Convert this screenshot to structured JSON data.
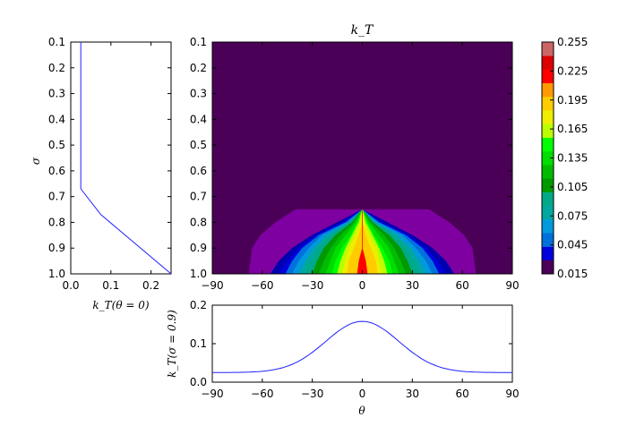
{
  "chart_data": [
    {
      "type": "line",
      "name": "profile-theta0",
      "xlabel": "k_T(θ = 0)",
      "ylabel": "σ",
      "xlim": [
        0.0,
        0.25
      ],
      "ylim": [
        0.1,
        1.0
      ],
      "y_inverted": true,
      "xticks": [
        "0.0",
        "0.1",
        "0.2"
      ],
      "yticks": [
        "0.1",
        "0.2",
        "0.3",
        "0.4",
        "0.5",
        "0.6",
        "0.7",
        "0.8",
        "0.9",
        "1.0"
      ],
      "series": [
        {
          "color": "#2020ff",
          "x": [
            0.025,
            0.025,
            0.075,
            0.25
          ],
          "y": [
            0.1,
            0.67,
            0.77,
            1.0
          ]
        }
      ]
    },
    {
      "type": "heatmap",
      "name": "kT-contour",
      "title": "k_T",
      "xlim": [
        -90,
        90
      ],
      "ylim": [
        0.1,
        1.0
      ],
      "y_inverted": true,
      "xticks": [
        "−90",
        "−60",
        "−30",
        "0",
        "30",
        "60",
        "90"
      ],
      "yticks": [
        "0.1",
        "0.2",
        "0.3",
        "0.4",
        "0.5",
        "0.6",
        "0.7",
        "0.8",
        "0.9",
        "1.0"
      ],
      "colorbar_ticks": [
        "0.255",
        "0.225",
        "0.195",
        "0.165",
        "0.135",
        "0.105",
        "0.075",
        "0.045",
        "0.015"
      ],
      "levels": [
        0.0,
        0.015,
        0.03,
        0.045,
        0.06,
        0.075,
        0.09,
        0.105,
        0.12,
        0.135,
        0.15,
        0.165,
        0.18,
        0.195,
        0.21,
        0.225,
        0.24,
        0.255,
        0.27
      ],
      "level_colors": [
        "#4b0057",
        "#7f00a0",
        "#0000b0",
        "#0000dd",
        "#0070dd",
        "#0099dd",
        "#00a8a0",
        "#00aa88",
        "#009900",
        "#00bb00",
        "#00dd00",
        "#00ff00",
        "#bbff00",
        "#eeee00",
        "#ffcc00",
        "#ff9900",
        "#ff0000",
        "#dd0000",
        "#cc6666"
      ],
      "contours": [
        {
          "level": 0.015,
          "theta_half_width": [
            68,
            67,
            66,
            61,
            52,
            40
          ]
        },
        {
          "level": 0.03,
          "theta_half_width": [
            55,
            50,
            42,
            30,
            15,
            0
          ]
        },
        {
          "level": 0.045,
          "theta_half_width": [
            50,
            45,
            38,
            28,
            12,
            0
          ]
        },
        {
          "level": 0.06,
          "theta_half_width": [
            46,
            42,
            36,
            26,
            10,
            0
          ]
        },
        {
          "level": 0.075,
          "theta_half_width": [
            42,
            38,
            32,
            24,
            9,
            0
          ]
        },
        {
          "level": 0.09,
          "theta_half_width": [
            38,
            34,
            29,
            21,
            8,
            0
          ]
        },
        {
          "level": 0.105,
          "theta_half_width": [
            34,
            31,
            26,
            19,
            7,
            0
          ]
        },
        {
          "level": 0.12,
          "theta_half_width": [
            30,
            27,
            23,
            16,
            6,
            0
          ]
        },
        {
          "level": 0.135,
          "theta_half_width": [
            26,
            23,
            19,
            13,
            5,
            0
          ]
        },
        {
          "level": 0.15,
          "theta_half_width": [
            22,
            19,
            16,
            10,
            4,
            0
          ]
        },
        {
          "level": 0.165,
          "theta_half_width": [
            18,
            16,
            12,
            7,
            3,
            0
          ]
        },
        {
          "level": 0.18,
          "theta_half_width": [
            15,
            13,
            10,
            6,
            2,
            0
          ]
        },
        {
          "level": 0.195,
          "theta_half_width": [
            12,
            10,
            8,
            4,
            1,
            0
          ]
        },
        {
          "level": 0.21,
          "theta_half_width": [
            9,
            8,
            5,
            2,
            0,
            0
          ]
        },
        {
          "level": 0.24,
          "theta_half_width": [
            3,
            2,
            0,
            0,
            0,
            0
          ]
        }
      ],
      "contour_sigma": [
        1.0,
        0.95,
        0.9,
        0.85,
        0.8,
        0.75
      ]
    },
    {
      "type": "line",
      "name": "profile-sigma09",
      "xlabel": "θ",
      "ylabel": "k_T(σ = 0.9)",
      "xlim": [
        -90,
        90
      ],
      "ylim": [
        0.0,
        0.2
      ],
      "xticks": [
        "−90",
        "−60",
        "−30",
        "0",
        "30",
        "60",
        "90"
      ],
      "yticks": [
        "0.0",
        "0.1",
        "0.2"
      ],
      "series": [
        {
          "color": "#2020ff",
          "baseline": 0.025,
          "peak": 0.158,
          "sigma_deg": 22
        }
      ]
    }
  ]
}
